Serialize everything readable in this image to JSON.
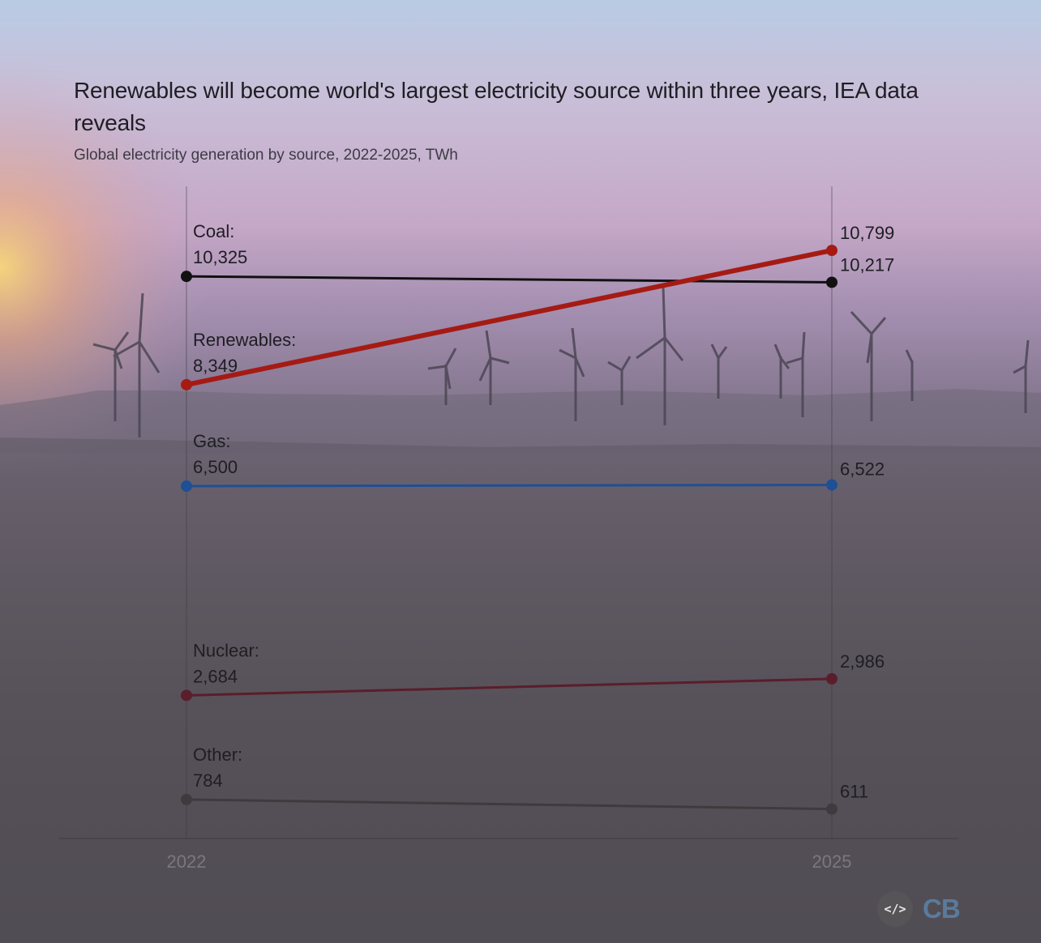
{
  "title": "Renewables will become world's largest electricity source within three years, IEA data reveals",
  "subtitle": "Global electricity generation by source, 2022-2025, TWh",
  "chart_data": {
    "type": "line",
    "x": [
      "2022",
      "2025"
    ],
    "ylim": [
      0,
      11000
    ],
    "grid": false,
    "series": [
      {
        "name": "Coal",
        "values": [
          10325,
          10217
        ],
        "labels": [
          "10,325",
          "10,217"
        ],
        "color": "#111111"
      },
      {
        "name": "Renewables",
        "values": [
          8349,
          10799
        ],
        "labels": [
          "8,349",
          "10,799"
        ],
        "color": "#a51b14"
      },
      {
        "name": "Gas",
        "values": [
          6500,
          6522
        ],
        "labels": [
          "6,500",
          "6,522"
        ],
        "color": "#1f4f94"
      },
      {
        "name": "Nuclear",
        "values": [
          2684,
          2986
        ],
        "labels": [
          "2,684",
          "2,986"
        ],
        "color": "#5a1e2a"
      },
      {
        "name": "Other",
        "values": [
          784,
          611
        ],
        "labels": [
          "784",
          "611"
        ],
        "color": "#3d3b3d"
      }
    ]
  },
  "footer": {
    "embed_label": "</>",
    "logo_text": "CB",
    "embed_icon": "embed-code-icon"
  }
}
